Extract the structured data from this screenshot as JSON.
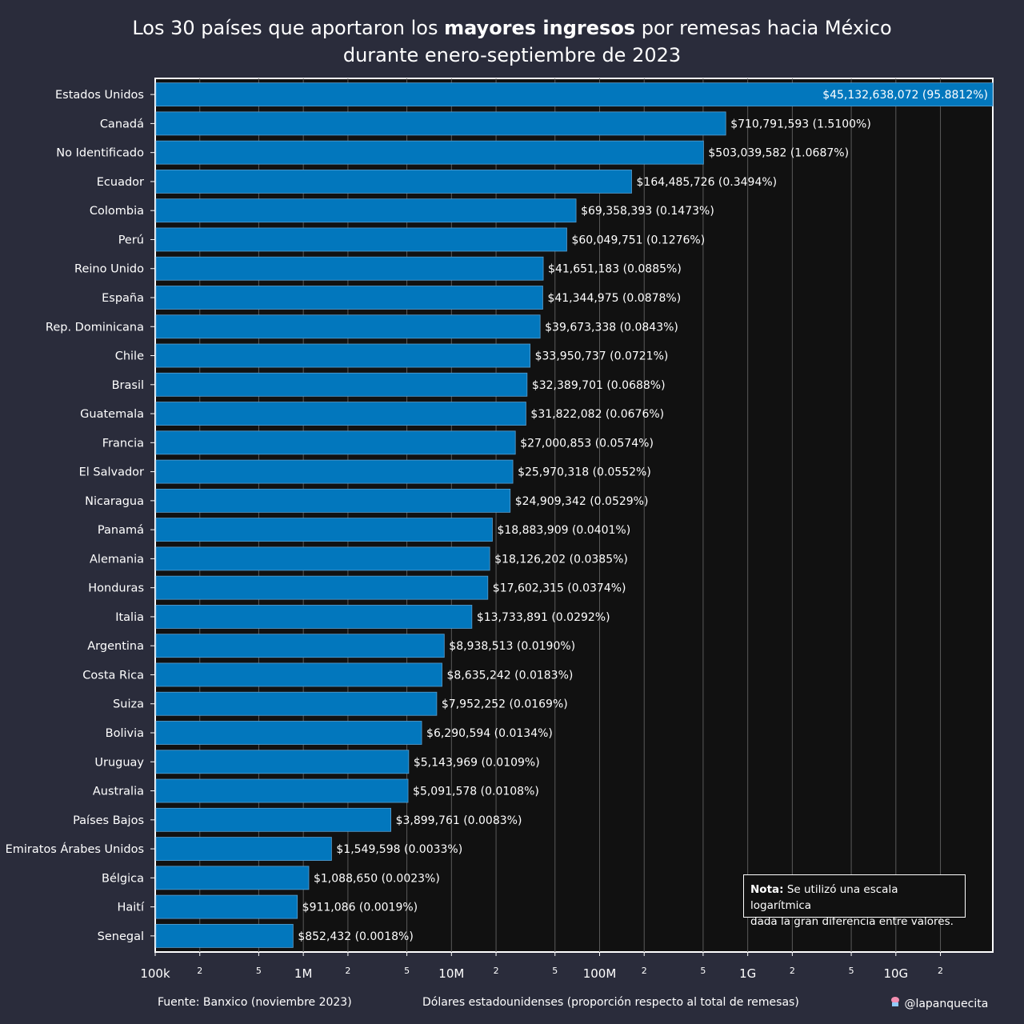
{
  "title": {
    "before": "Los 30 países que aportaron los ",
    "bold": "mayores ingresos",
    "after": " por remesas hacia México",
    "line2": "durante enero-septiembre de 2023"
  },
  "chart_data": {
    "type": "bar",
    "orientation": "horizontal",
    "scale": "log",
    "xlim": [
      100000,
      45132638072
    ],
    "categories": [
      "Estados Unidos",
      "Canadá",
      "No Identificado",
      "Ecuador",
      "Colombia",
      "Perú",
      "Reino Unido",
      "España",
      "Rep. Dominicana",
      "Chile",
      "Brasil",
      "Guatemala",
      "Francia",
      "El Salvador",
      "Nicaragua",
      "Panamá",
      "Alemania",
      "Honduras",
      "Italia",
      "Argentina",
      "Costa Rica",
      "Suiza",
      "Bolivia",
      "Uruguay",
      "Australia",
      "Países Bajos",
      "Emiratos Árabes Unidos",
      "Bélgica",
      "Haití",
      "Senegal"
    ],
    "values": [
      45132638072,
      710791593,
      503039582,
      164485726,
      69358393,
      60049751,
      41651183,
      41344975,
      39673338,
      33950737,
      32389701,
      31822082,
      27000853,
      25970318,
      24909342,
      18883909,
      18126202,
      17602315,
      13733891,
      8938513,
      8635242,
      7952252,
      6290594,
      5143969,
      5091578,
      3899761,
      1549598,
      1088650,
      911086,
      852432
    ],
    "labels": [
      "$45,132,638,072 (95.8812%)",
      "$710,791,593 (1.5100%)",
      "$503,039,582 (1.0687%)",
      "$164,485,726 (0.3494%)",
      "$69,358,393 (0.1473%)",
      "$60,049,751 (0.1276%)",
      "$41,651,183 (0.0885%)",
      "$41,344,975 (0.0878%)",
      "$39,673,338 (0.0843%)",
      "$33,950,737 (0.0721%)",
      "$32,389,701 (0.0688%)",
      "$31,822,082 (0.0676%)",
      "$27,000,853 (0.0574%)",
      "$25,970,318 (0.0552%)",
      "$24,909,342 (0.0529%)",
      "$18,883,909 (0.0401%)",
      "$18,126,202 (0.0385%)",
      "$17,602,315 (0.0374%)",
      "$13,733,891 (0.0292%)",
      "$8,938,513 (0.0190%)",
      "$8,635,242 (0.0183%)",
      "$7,952,252 (0.0169%)",
      "$6,290,594 (0.0134%)",
      "$5,143,969 (0.0109%)",
      "$5,091,578 (0.0108%)",
      "$3,899,761 (0.0083%)",
      "$1,549,598 (0.0033%)",
      "$1,088,650 (0.0023%)",
      "$911,086 (0.0019%)",
      "$852,432 (0.0018%)"
    ],
    "major_ticks": [
      {
        "value": 100000,
        "label": "100k"
      },
      {
        "value": 1000000,
        "label": "1M"
      },
      {
        "value": 10000000,
        "label": "10M"
      },
      {
        "value": 100000000,
        "label": "100M"
      },
      {
        "value": 1000000000,
        "label": "1G"
      },
      {
        "value": 10000000000,
        "label": "10G"
      }
    ],
    "minor_ticks": [
      {
        "value": 200000,
        "label": "2"
      },
      {
        "value": 500000,
        "label": "5"
      },
      {
        "value": 2000000,
        "label": "2"
      },
      {
        "value": 5000000,
        "label": "5"
      },
      {
        "value": 20000000,
        "label": "2"
      },
      {
        "value": 50000000,
        "label": "5"
      },
      {
        "value": 200000000,
        "label": "2"
      },
      {
        "value": 500000000,
        "label": "5"
      },
      {
        "value": 2000000000,
        "label": "2"
      },
      {
        "value": 5000000000,
        "label": "5"
      },
      {
        "value": 20000000000,
        "label": "2"
      }
    ],
    "xlabel": "Dólares estadounidenses (proporción respecto al total de remesas)",
    "grid": true,
    "colors": {
      "bar": "#0277bd",
      "bar_border": "#5a9fd0",
      "plot_background": "#111111",
      "page_background": "#2a2c3b",
      "grid": "#5a5a5a",
      "text": "#ffffff"
    }
  },
  "note": {
    "bold": "Nota:",
    "text": " Se utilizó una escala logarítmica",
    "line2": "dada la gran diferencia entre valores."
  },
  "footer": {
    "source": "Fuente: Banxico (noviembre 2023)",
    "axis_label": "Dólares estadounidenses (proporción respecto al total de remesas)",
    "handle": "@lapanquecita",
    "handle_icon": "cupcake-icon"
  }
}
